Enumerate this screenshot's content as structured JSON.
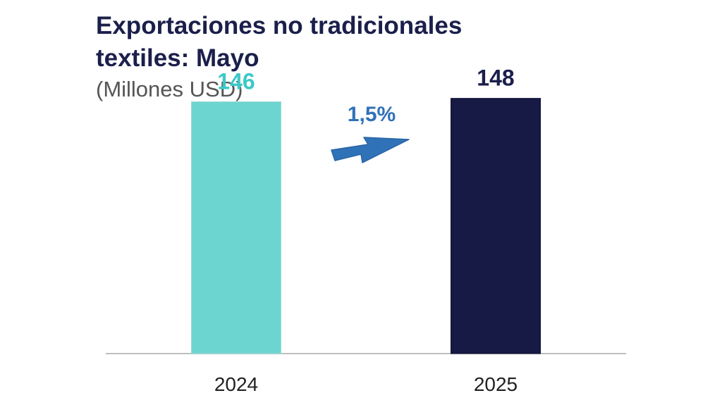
{
  "chart_data": {
    "type": "bar",
    "title_line1": "Exportaciones no tradicionales",
    "title_line2": "textiles: Mayo",
    "subtitle": "(Millones USD)",
    "categories": [
      "2024",
      "2025"
    ],
    "values": [
      146,
      148
    ],
    "value_labels": [
      "146",
      "148"
    ],
    "colors": [
      "#6dd5d0",
      "#171a45"
    ],
    "label_colors": [
      "#3cc8c8",
      "#1b1f4b"
    ],
    "annotation": {
      "text": "1,5%",
      "color": "#2f72b8"
    },
    "ylim": [
      0,
      165
    ],
    "grid": false,
    "legend": "none"
  }
}
